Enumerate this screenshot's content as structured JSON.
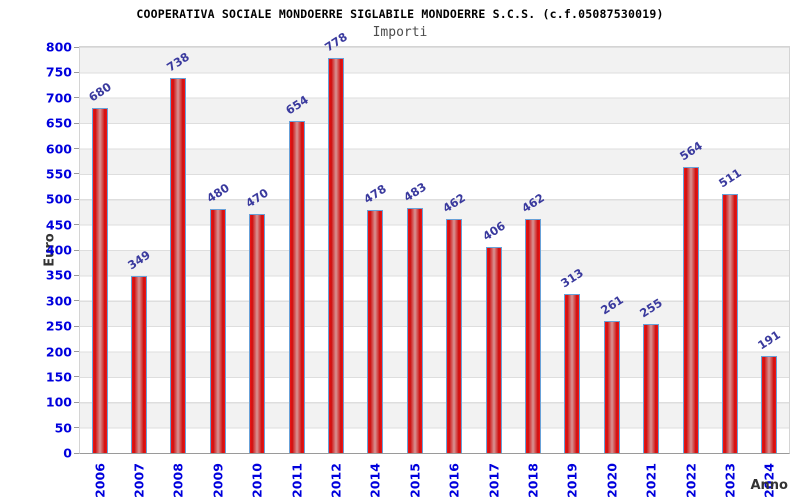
{
  "chart_data": {
    "type": "bar",
    "title": "COOPERATIVA SOCIALE MONDOERRE SIGLABILE MONDOERRE S.C.S. (c.f.05087530019)",
    "subtitle": "Importi",
    "xlabel": "Anno",
    "ylabel": "Euro",
    "categories": [
      "2006",
      "2007",
      "2008",
      "2009",
      "2010",
      "2011",
      "2012",
      "2014",
      "2015",
      "2016",
      "2017",
      "2018",
      "2019",
      "2020",
      "2021",
      "2022",
      "2023",
      "2024"
    ],
    "values": [
      680,
      349,
      738,
      480,
      470,
      654,
      778,
      478,
      483,
      462,
      406,
      462,
      313,
      261,
      255,
      564,
      511,
      191
    ],
    "ylim": [
      0,
      800
    ],
    "ytick_step": 50,
    "grid": "horizontal-bands-alternating",
    "legend": "none",
    "value_labels": "above-bars-rotated",
    "colors": {
      "bar_edge": "#f21515",
      "bar_mid": "#cf0e0e",
      "bar_highlight": "#d89494",
      "bar_border": "#68a1d8",
      "axis_tick_text": "#0000dd",
      "value_label_text": "#3a3a9e",
      "band_gray": "#f2f2f2",
      "grid_line": "#dedede",
      "title_text": "#000000",
      "subtitle_text": "#4d4d4d",
      "axis_title_text": "#333333"
    }
  }
}
